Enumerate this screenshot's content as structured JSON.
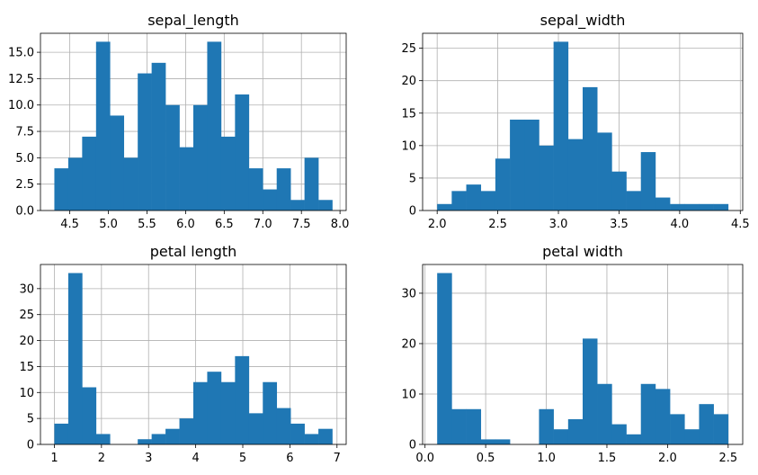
{
  "figure": {
    "background": "#ffffff",
    "bar_color": "#1f77b4",
    "grid": true
  },
  "chart_data": [
    {
      "type": "bar",
      "subtype": "histogram",
      "title": "sepal_length",
      "xlabel": "",
      "ylabel": "",
      "bins": 20,
      "bin_range": [
        4.3,
        7.9
      ],
      "values": [
        4,
        5,
        7,
        16,
        9,
        5,
        13,
        14,
        10,
        6,
        10,
        16,
        7,
        11,
        4,
        2,
        4,
        1,
        5,
        1
      ],
      "xlim": [
        4.12,
        8.08
      ],
      "ylim": [
        0,
        16.8
      ],
      "xticks": [
        4.5,
        5.0,
        5.5,
        6.0,
        6.5,
        7.0,
        7.5,
        8.0
      ],
      "xticklabels": [
        "4.5",
        "5.0",
        "5.5",
        "6.0",
        "6.5",
        "7.0",
        "7.5",
        "8.0"
      ],
      "yticks": [
        0,
        2.5,
        5.0,
        7.5,
        10.0,
        12.5,
        15.0
      ],
      "yticklabels": [
        "0.0",
        "2.5",
        "5.0",
        "7.5",
        "10.0",
        "12.5",
        "15.0"
      ]
    },
    {
      "type": "bar",
      "subtype": "histogram",
      "title": "sepal_width",
      "xlabel": "",
      "ylabel": "",
      "bins": 20,
      "bin_range": [
        2.0,
        4.4
      ],
      "values": [
        1,
        3,
        4,
        3,
        8,
        14,
        14,
        10,
        26,
        11,
        19,
        12,
        6,
        3,
        9,
        2,
        1,
        1,
        1,
        1
      ],
      "xlim": [
        1.88,
        4.52
      ],
      "ylim": [
        0,
        27.3
      ],
      "xticks": [
        2.0,
        2.5,
        3.0,
        3.5,
        4.0,
        4.5
      ],
      "xticklabels": [
        "2.0",
        "2.5",
        "3.0",
        "3.5",
        "4.0",
        "4.5"
      ],
      "yticks": [
        0,
        5,
        10,
        15,
        20,
        25
      ],
      "yticklabels": [
        "0",
        "5",
        "10",
        "15",
        "20",
        "25"
      ]
    },
    {
      "type": "bar",
      "subtype": "histogram",
      "title": "petal length",
      "xlabel": "",
      "ylabel": "",
      "bins": 20,
      "bin_range": [
        1.0,
        6.9
      ],
      "values": [
        4,
        33,
        11,
        2,
        0,
        0,
        1,
        2,
        3,
        5,
        12,
        14,
        12,
        17,
        6,
        12,
        7,
        4,
        2,
        3
      ],
      "xlim": [
        0.705,
        7.195
      ],
      "ylim": [
        0,
        34.65
      ],
      "xticks": [
        1,
        2,
        3,
        4,
        5,
        6,
        7
      ],
      "xticklabels": [
        "1",
        "2",
        "3",
        "4",
        "5",
        "6",
        "7"
      ],
      "yticks": [
        0,
        5,
        10,
        15,
        20,
        25,
        30
      ],
      "yticklabels": [
        "0",
        "5",
        "10",
        "15",
        "20",
        "25",
        "30"
      ]
    },
    {
      "type": "bar",
      "subtype": "histogram",
      "title": "petal width",
      "xlabel": "",
      "ylabel": "",
      "bins": 20,
      "bin_range": [
        0.1,
        2.5
      ],
      "values": [
        34,
        7,
        7,
        1,
        1,
        0,
        0,
        7,
        3,
        5,
        21,
        12,
        4,
        2,
        12,
        11,
        6,
        3,
        8,
        6
      ],
      "xlim": [
        -0.02,
        2.62
      ],
      "ylim": [
        0,
        35.7
      ],
      "xticks": [
        0.0,
        0.5,
        1.0,
        1.5,
        2.0,
        2.5
      ],
      "xticklabels": [
        "0.0",
        "0.5",
        "1.0",
        "1.5",
        "2.0",
        "2.5"
      ],
      "yticks": [
        0,
        10,
        20,
        30
      ],
      "yticklabels": [
        "0",
        "10",
        "20",
        "30"
      ]
    }
  ]
}
